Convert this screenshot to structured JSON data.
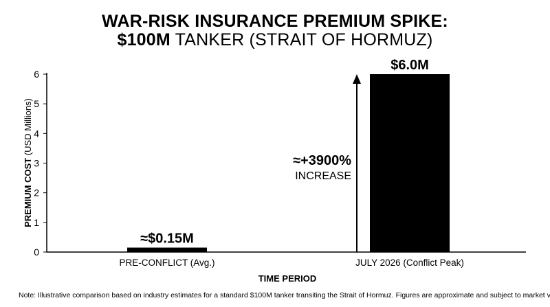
{
  "chart_data": {
    "type": "bar",
    "title_line1": "WAR-RISK INSURANCE PREMIUM SPIKE:",
    "title_line2_bold": "$100M",
    "title_line2_rest": " TANKER (STRAIT OF HORMUZ)",
    "xlabel": "TIME PERIOD",
    "ylabel_bold": "PREMIUM COST",
    "ylabel_rest": " (USD Millions)",
    "categories": [
      "PRE-CONFLICT (Avg.)",
      "JULY 2026 (Conflict Peak)"
    ],
    "values": [
      0.15,
      6.0
    ],
    "data_labels": [
      "≈$0.15M",
      "$6.0M"
    ],
    "ylim": [
      0,
      6
    ],
    "yticks": [
      0,
      1,
      2,
      3,
      4,
      5,
      6
    ],
    "grid": false,
    "annotation": {
      "line1": "≈+3900%",
      "line2": "INCREASE"
    },
    "bar_color": "#000000"
  },
  "note": "Note: Illustrative comparison based on industry estimates for a standard $100M tanker transiting the Strait of Hormuz. Figures are approximate and subject to market volatility."
}
